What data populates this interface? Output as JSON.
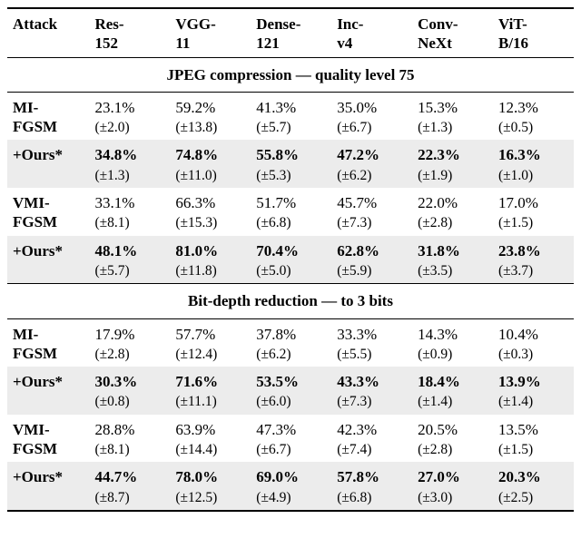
{
  "columns": [
    {
      "l1": "Attack",
      "l2": ""
    },
    {
      "l1": "Res-",
      "l2": "152"
    },
    {
      "l1": "VGG-",
      "l2": "11"
    },
    {
      "l1": "Dense-",
      "l2": "121"
    },
    {
      "l1": "Inc-",
      "l2": "v4"
    },
    {
      "l1": "Conv-",
      "l2": "NeXt"
    },
    {
      "l1": "ViT-",
      "l2": "B/16"
    }
  ],
  "sections": [
    {
      "title": "JPEG compression — quality level 75",
      "rows": [
        {
          "attack_l1": "MI-",
          "attack_l2": "FGSM",
          "shaded": false,
          "bold": false,
          "cells": [
            {
              "v": "23.1%",
              "s": "(±2.0)"
            },
            {
              "v": "59.2%",
              "s": "(±13.8)"
            },
            {
              "v": "41.3%",
              "s": "(±5.7)"
            },
            {
              "v": "35.0%",
              "s": "(±6.7)"
            },
            {
              "v": "15.3%",
              "s": "(±1.3)"
            },
            {
              "v": "12.3%",
              "s": "(±0.5)"
            }
          ]
        },
        {
          "attack_l1": "+Ours*",
          "attack_l2": "",
          "shaded": true,
          "bold": true,
          "cells": [
            {
              "v": "34.8%",
              "s": "(±1.3)"
            },
            {
              "v": "74.8%",
              "s": "(±11.0)"
            },
            {
              "v": "55.8%",
              "s": "(±5.3)"
            },
            {
              "v": "47.2%",
              "s": "(±6.2)"
            },
            {
              "v": "22.3%",
              "s": "(±1.9)"
            },
            {
              "v": "16.3%",
              "s": "(±1.0)"
            }
          ]
        },
        {
          "attack_l1": "VMI-",
          "attack_l2": "FGSM",
          "shaded": false,
          "bold": false,
          "cells": [
            {
              "v": "33.1%",
              "s": "(±8.1)"
            },
            {
              "v": "66.3%",
              "s": "(±15.3)"
            },
            {
              "v": "51.7%",
              "s": "(±6.8)"
            },
            {
              "v": "45.7%",
              "s": "(±7.3)"
            },
            {
              "v": "22.0%",
              "s": "(±2.8)"
            },
            {
              "v": "17.0%",
              "s": "(±1.5)"
            }
          ]
        },
        {
          "attack_l1": "+Ours*",
          "attack_l2": "",
          "shaded": true,
          "bold": true,
          "cells": [
            {
              "v": "48.1%",
              "s": "(±5.7)"
            },
            {
              "v": "81.0%",
              "s": "(±11.8)"
            },
            {
              "v": "70.4%",
              "s": "(±5.0)"
            },
            {
              "v": "62.8%",
              "s": "(±5.9)"
            },
            {
              "v": "31.8%",
              "s": "(±3.5)"
            },
            {
              "v": "23.8%",
              "s": "(±3.7)"
            }
          ]
        }
      ]
    },
    {
      "title": "Bit-depth reduction — to 3 bits",
      "rows": [
        {
          "attack_l1": "MI-",
          "attack_l2": "FGSM",
          "shaded": false,
          "bold": false,
          "cells": [
            {
              "v": "17.9%",
              "s": "(±2.8)"
            },
            {
              "v": "57.7%",
              "s": "(±12.4)"
            },
            {
              "v": "37.8%",
              "s": "(±6.2)"
            },
            {
              "v": "33.3%",
              "s": "(±5.5)"
            },
            {
              "v": "14.3%",
              "s": "(±0.9)"
            },
            {
              "v": "10.4%",
              "s": "(±0.3)"
            }
          ]
        },
        {
          "attack_l1": "+Ours*",
          "attack_l2": "",
          "shaded": true,
          "bold": true,
          "cells": [
            {
              "v": "30.3%",
              "s": "(±0.8)"
            },
            {
              "v": "71.6%",
              "s": "(±11.1)"
            },
            {
              "v": "53.5%",
              "s": "(±6.0)"
            },
            {
              "v": "43.3%",
              "s": "(±7.3)"
            },
            {
              "v": "18.4%",
              "s": "(±1.4)"
            },
            {
              "v": "13.9%",
              "s": "(±1.4)"
            }
          ]
        },
        {
          "attack_l1": "VMI-",
          "attack_l2": "FGSM",
          "shaded": false,
          "bold": false,
          "cells": [
            {
              "v": "28.8%",
              "s": "(±8.1)"
            },
            {
              "v": "63.9%",
              "s": "(±14.4)"
            },
            {
              "v": "47.3%",
              "s": "(±6.7)"
            },
            {
              "v": "42.3%",
              "s": "(±7.4)"
            },
            {
              "v": "20.5%",
              "s": "(±2.8)"
            },
            {
              "v": "13.5%",
              "s": "(±1.5)"
            }
          ]
        },
        {
          "attack_l1": "+Ours*",
          "attack_l2": "",
          "shaded": true,
          "bold": true,
          "cells": [
            {
              "v": "44.7%",
              "s": "(±8.7)"
            },
            {
              "v": "78.0%",
              "s": "(±12.5)"
            },
            {
              "v": "69.0%",
              "s": "(±4.9)"
            },
            {
              "v": "57.8%",
              "s": "(±6.8)"
            },
            {
              "v": "27.0%",
              "s": "(±3.0)"
            },
            {
              "v": "20.3%",
              "s": "(±2.5)"
            }
          ]
        }
      ]
    }
  ],
  "style": {
    "shaded_bg": "#ececec",
    "bg": "#ffffff",
    "font_size_main": 17,
    "font_size_sub": 15.5
  }
}
